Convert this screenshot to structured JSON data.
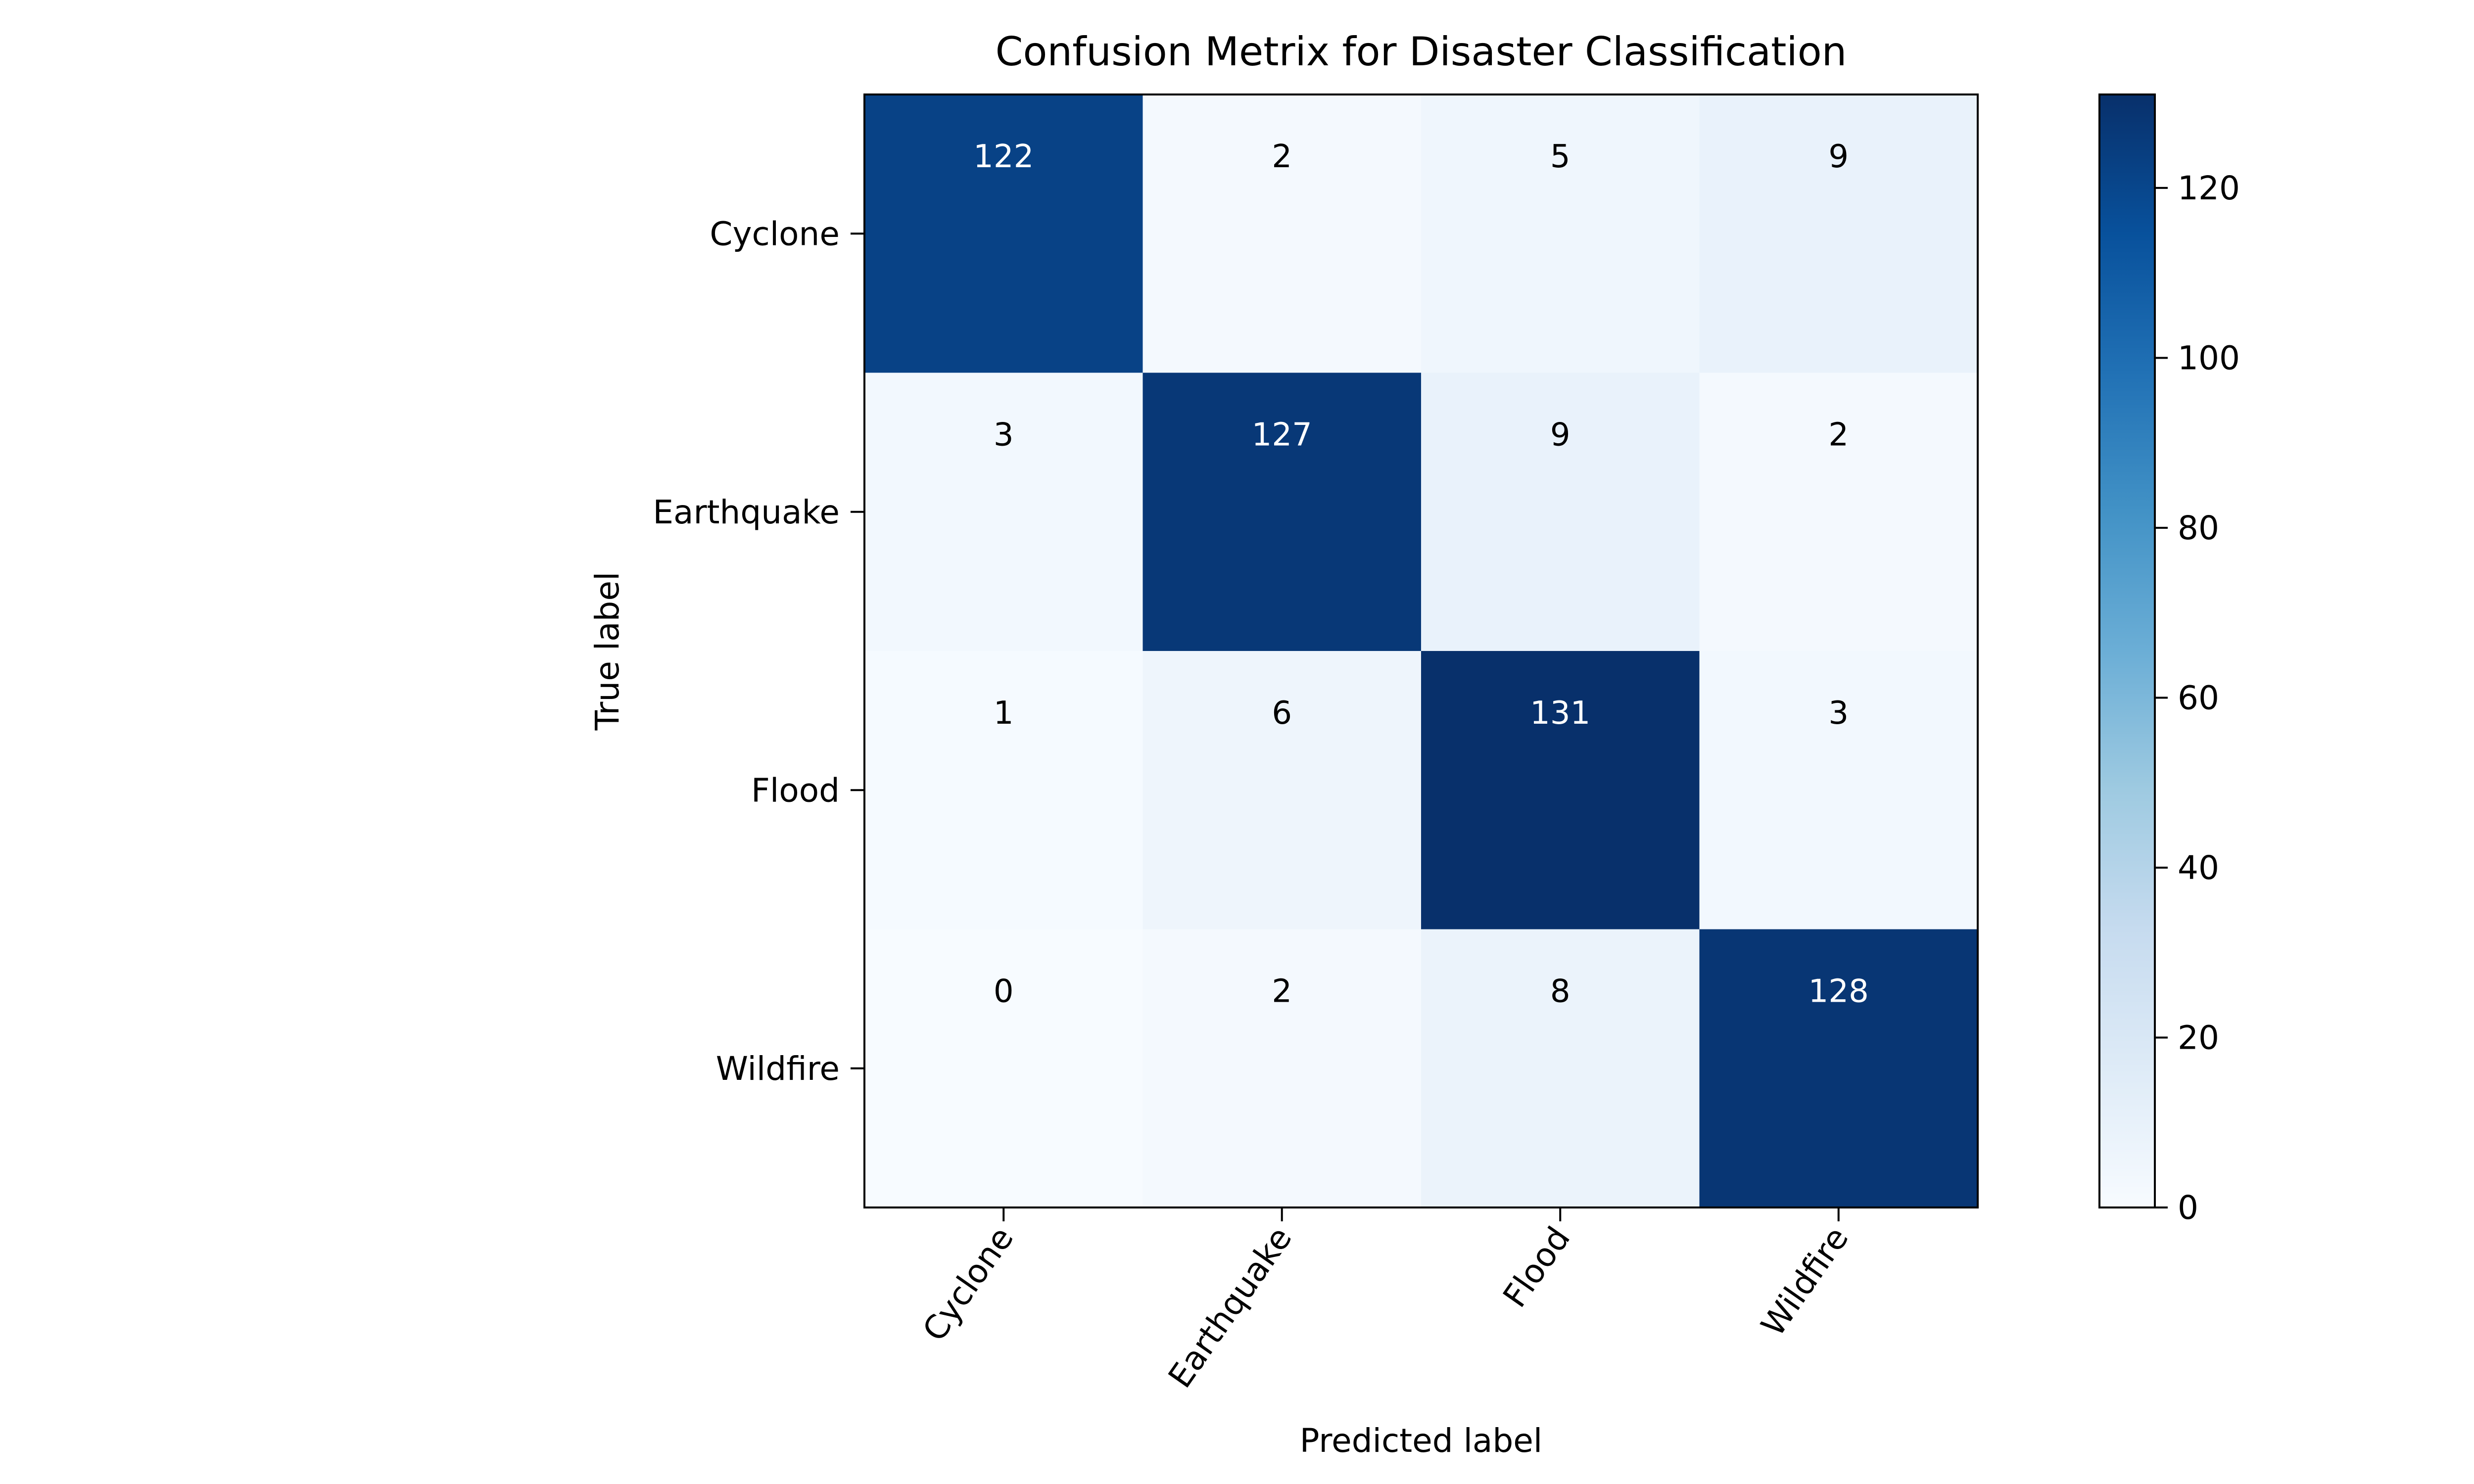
{
  "chart_data": {
    "type": "heatmap",
    "title": "Confusion Metrix for Disaster Classification",
    "xlabel": "Predicted label",
    "ylabel": "True label",
    "x_categories": [
      "Cyclone",
      "Earthquake",
      "Flood",
      "Wildfire"
    ],
    "y_categories": [
      "Cyclone",
      "Earthquake",
      "Flood",
      "Wildfire"
    ],
    "values": [
      [
        122,
        2,
        5,
        9
      ],
      [
        3,
        127,
        9,
        2
      ],
      [
        1,
        6,
        131,
        3
      ],
      [
        0,
        2,
        8,
        128
      ]
    ],
    "colormap": "Blues",
    "colorbar": {
      "min": 0,
      "max": 131,
      "ticks": [
        0,
        20,
        40,
        60,
        80,
        100,
        120
      ]
    },
    "grid": false,
    "text_color_dark": "#ffffff",
    "text_color_light": "#000000"
  }
}
